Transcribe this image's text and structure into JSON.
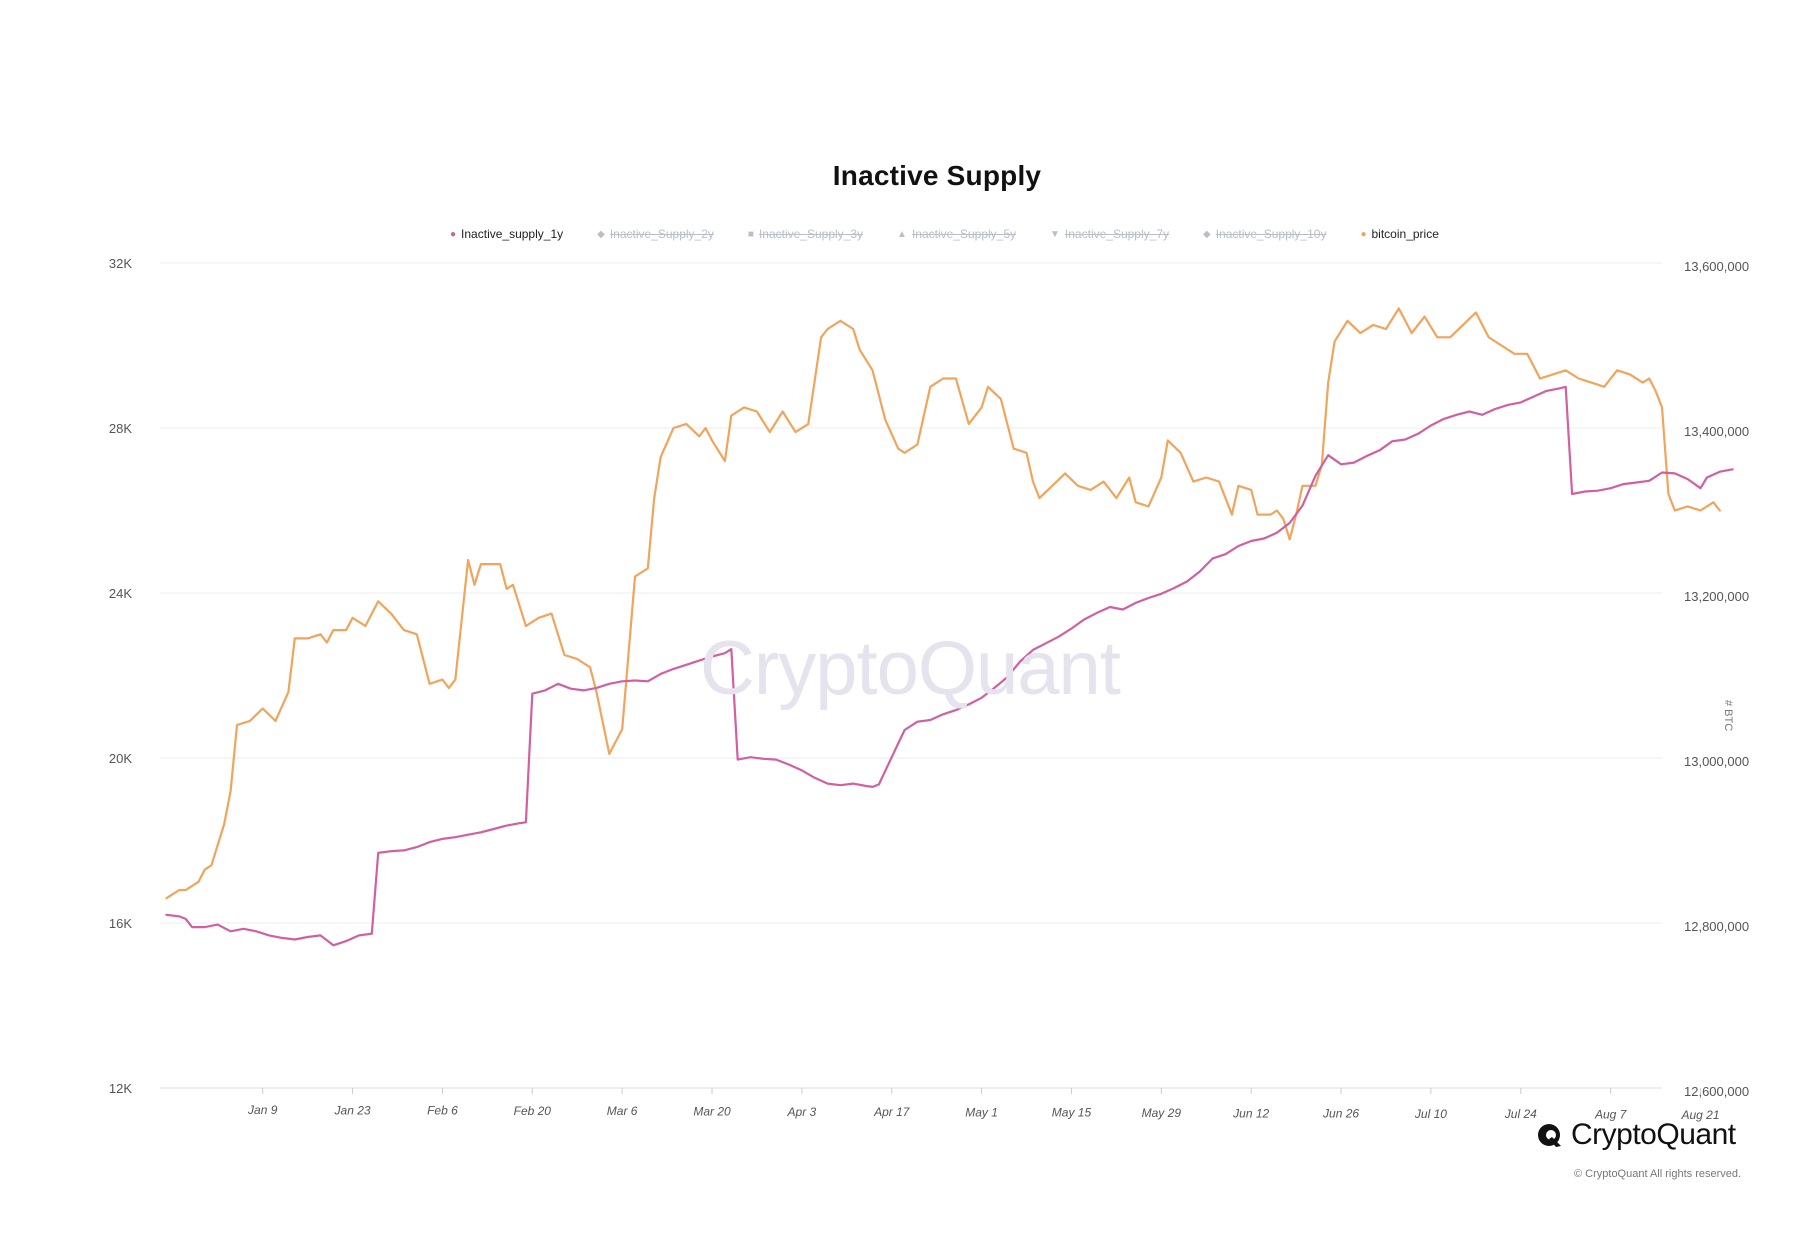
{
  "page": {
    "title": "Inactive Supply",
    "watermark": "CryptoQuant",
    "brand": "CryptoQuant",
    "copyright": "© CryptoQuant All rights reserved."
  },
  "legend": [
    {
      "label": "Inactive_supply_1y",
      "active": true,
      "color": "#d0609f",
      "marker": "●"
    },
    {
      "label": "Inactive_Supply_2y",
      "active": false,
      "color": "#b9bec8",
      "marker": "◆"
    },
    {
      "label": "Inactive_Supply_3y",
      "active": false,
      "color": "#b9bec8",
      "marker": "■"
    },
    {
      "label": "Inactive_Supply_5y",
      "active": false,
      "color": "#b9bec8",
      "marker": "▲"
    },
    {
      "label": "Inactive_Supply_7y",
      "active": false,
      "color": "#b9bec8",
      "marker": "▼"
    },
    {
      "label": "Inactive_Supply_10y",
      "active": false,
      "color": "#b9bec8",
      "marker": "◆"
    },
    {
      "label": "bitcoin_price",
      "active": true,
      "color": "#f0a45c",
      "marker": "●"
    }
  ],
  "chart_data": {
    "type": "line",
    "title": "Inactive Supply",
    "y_left_ticks": [
      "12K",
      "16K",
      "20K",
      "24K",
      "28K",
      "32K"
    ],
    "y_left_range": [
      12000,
      32000
    ],
    "y_right_ticks": [
      "12,600,000",
      "12,800,000",
      "13,000,000",
      "13,200,000",
      "13,400,000",
      "13,600,000"
    ],
    "y_right_range": [
      12600000,
      13600000
    ],
    "y_right_label": "# BTC",
    "x_ticks": [
      "Jan 9",
      "Jan 23",
      "Feb 6",
      "Feb 20",
      "Mar 6",
      "Mar 20",
      "Apr 3",
      "Apr 17",
      "May 1",
      "May 15",
      "May 29",
      "Jun 12",
      "Jun 26",
      "Jul 10",
      "Jul 24",
      "Aug 7",
      "Aug 21"
    ],
    "x_start_day": -8,
    "x_end_day": 226,
    "grid": true,
    "series": [
      {
        "name": "bitcoin_price",
        "axis": "left",
        "color": "#f0a45c",
        "points": [
          [
            -7,
            16600
          ],
          [
            -6,
            16700
          ],
          [
            -5,
            16800
          ],
          [
            -4,
            16800
          ],
          [
            -3,
            16900
          ],
          [
            -2,
            17000
          ],
          [
            -1,
            17300
          ],
          [
            0,
            17400
          ],
          [
            2,
            18400
          ],
          [
            3,
            19200
          ],
          [
            4,
            20800
          ],
          [
            6,
            20900
          ],
          [
            8,
            21200
          ],
          [
            10,
            20900
          ],
          [
            12,
            21600
          ],
          [
            13,
            22900
          ],
          [
            15,
            22900
          ],
          [
            17,
            23000
          ],
          [
            18,
            22800
          ],
          [
            19,
            23100
          ],
          [
            21,
            23100
          ],
          [
            22,
            23400
          ],
          [
            24,
            23200
          ],
          [
            26,
            23800
          ],
          [
            28,
            23500
          ],
          [
            30,
            23100
          ],
          [
            32,
            23000
          ],
          [
            34,
            21800
          ],
          [
            36,
            21900
          ],
          [
            37,
            21700
          ],
          [
            38,
            21900
          ],
          [
            40,
            24800
          ],
          [
            41,
            24200
          ],
          [
            42,
            24700
          ],
          [
            45,
            24700
          ],
          [
            46,
            24100
          ],
          [
            47,
            24200
          ],
          [
            49,
            23200
          ],
          [
            51,
            23400
          ],
          [
            53,
            23500
          ],
          [
            55,
            22500
          ],
          [
            57,
            22400
          ],
          [
            59,
            22200
          ],
          [
            60,
            21600
          ],
          [
            62,
            20100
          ],
          [
            64,
            20700
          ],
          [
            66,
            24400
          ],
          [
            68,
            24600
          ],
          [
            69,
            26300
          ],
          [
            70,
            27300
          ],
          [
            72,
            28000
          ],
          [
            74,
            28100
          ],
          [
            76,
            27800
          ],
          [
            77,
            28000
          ],
          [
            78,
            27700
          ],
          [
            80,
            27200
          ],
          [
            81,
            28300
          ],
          [
            83,
            28500
          ],
          [
            85,
            28400
          ],
          [
            87,
            27900
          ],
          [
            89,
            28400
          ],
          [
            91,
            27900
          ],
          [
            93,
            28100
          ],
          [
            95,
            30200
          ],
          [
            96,
            30400
          ],
          [
            98,
            30600
          ],
          [
            100,
            30400
          ],
          [
            101,
            29900
          ],
          [
            103,
            29400
          ],
          [
            105,
            28200
          ],
          [
            107,
            27500
          ],
          [
            108,
            27400
          ],
          [
            110,
            27600
          ],
          [
            112,
            29000
          ],
          [
            114,
            29200
          ],
          [
            116,
            29200
          ],
          [
            118,
            28100
          ],
          [
            120,
            28500
          ],
          [
            121,
            29000
          ],
          [
            123,
            28700
          ],
          [
            125,
            27500
          ],
          [
            127,
            27400
          ],
          [
            128,
            26700
          ],
          [
            129,
            26300
          ],
          [
            131,
            26600
          ],
          [
            133,
            26900
          ],
          [
            135,
            26600
          ],
          [
            137,
            26500
          ],
          [
            139,
            26700
          ],
          [
            141,
            26300
          ],
          [
            143,
            26800
          ],
          [
            144,
            26200
          ],
          [
            146,
            26100
          ],
          [
            148,
            26800
          ],
          [
            149,
            27700
          ],
          [
            151,
            27400
          ],
          [
            153,
            26700
          ],
          [
            155,
            26800
          ],
          [
            157,
            26700
          ],
          [
            159,
            25900
          ],
          [
            160,
            26600
          ],
          [
            162,
            26500
          ],
          [
            163,
            25900
          ],
          [
            165,
            25900
          ],
          [
            166,
            26000
          ],
          [
            167,
            25800
          ],
          [
            168,
            25300
          ],
          [
            169,
            25900
          ],
          [
            170,
            26600
          ],
          [
            172,
            26600
          ],
          [
            173,
            27100
          ],
          [
            174,
            29100
          ],
          [
            175,
            30100
          ],
          [
            177,
            30600
          ],
          [
            179,
            30300
          ],
          [
            181,
            30500
          ],
          [
            183,
            30400
          ],
          [
            185,
            30900
          ],
          [
            187,
            30300
          ],
          [
            189,
            30700
          ],
          [
            191,
            30200
          ],
          [
            193,
            30200
          ],
          [
            195,
            30500
          ],
          [
            197,
            30800
          ],
          [
            199,
            30200
          ],
          [
            201,
            30000
          ],
          [
            203,
            29800
          ],
          [
            205,
            29800
          ],
          [
            207,
            29200
          ],
          [
            209,
            29300
          ],
          [
            211,
            29400
          ],
          [
            213,
            29200
          ],
          [
            215,
            29100
          ],
          [
            217,
            29000
          ],
          [
            219,
            29400
          ],
          [
            221,
            29300
          ],
          [
            223,
            29100
          ],
          [
            224,
            29200
          ],
          [
            225,
            28900
          ],
          [
            226,
            28500
          ],
          [
            227,
            26400
          ],
          [
            228,
            26000
          ],
          [
            230,
            26100
          ],
          [
            232,
            26000
          ],
          [
            234,
            26200
          ],
          [
            235,
            26000
          ]
        ]
      },
      {
        "name": "Inactive_supply_1y",
        "axis": "right",
        "color": "#d0609f",
        "points": [
          [
            -7,
            12810000
          ],
          [
            -5,
            12808000
          ],
          [
            -4,
            12805000
          ],
          [
            -3,
            12795000
          ],
          [
            -1,
            12795000
          ],
          [
            1,
            12798000
          ],
          [
            3,
            12790000
          ],
          [
            5,
            12793000
          ],
          [
            7,
            12790000
          ],
          [
            9,
            12785000
          ],
          [
            11,
            12782000
          ],
          [
            13,
            12780000
          ],
          [
            15,
            12783000
          ],
          [
            17,
            12785000
          ],
          [
            19,
            12773000
          ],
          [
            21,
            12778000
          ],
          [
            23,
            12785000
          ],
          [
            25,
            12787000
          ],
          [
            26,
            12885000
          ],
          [
            28,
            12887000
          ],
          [
            30,
            12888000
          ],
          [
            32,
            12892000
          ],
          [
            34,
            12898000
          ],
          [
            36,
            12902000
          ],
          [
            38,
            12904000
          ],
          [
            40,
            12907000
          ],
          [
            42,
            12910000
          ],
          [
            44,
            12914000
          ],
          [
            46,
            12918000
          ],
          [
            48,
            12921000
          ],
          [
            49,
            12922000
          ],
          [
            50,
            13078000
          ],
          [
            52,
            13082000
          ],
          [
            54,
            13090000
          ],
          [
            56,
            13084000
          ],
          [
            58,
            13082000
          ],
          [
            60,
            13085000
          ],
          [
            62,
            13090000
          ],
          [
            64,
            13093000
          ],
          [
            66,
            13094000
          ],
          [
            68,
            13093000
          ],
          [
            70,
            13102000
          ],
          [
            72,
            13108000
          ],
          [
            74,
            13113000
          ],
          [
            76,
            13118000
          ],
          [
            78,
            13123000
          ],
          [
            80,
            13127000
          ],
          [
            81,
            13132000
          ],
          [
            82,
            12998000
          ],
          [
            84,
            13001000
          ],
          [
            86,
            12999000
          ],
          [
            88,
            12998000
          ],
          [
            90,
            12992000
          ],
          [
            92,
            12985000
          ],
          [
            94,
            12976000
          ],
          [
            96,
            12969000
          ],
          [
            98,
            12967000
          ],
          [
            100,
            12969000
          ],
          [
            102,
            12966000
          ],
          [
            103,
            12965000
          ],
          [
            104,
            12968000
          ],
          [
            106,
            13001000
          ],
          [
            108,
            13034000
          ],
          [
            110,
            13044000
          ],
          [
            112,
            13046000
          ],
          [
            114,
            13053000
          ],
          [
            116,
            13058000
          ],
          [
            118,
            13065000
          ],
          [
            120,
            13073000
          ],
          [
            122,
            13085000
          ],
          [
            124,
            13098000
          ],
          [
            126,
            13117000
          ],
          [
            128,
            13131000
          ],
          [
            130,
            13139000
          ],
          [
            132,
            13147000
          ],
          [
            134,
            13157000
          ],
          [
            136,
            13168000
          ],
          [
            138,
            13176000
          ],
          [
            140,
            13183000
          ],
          [
            142,
            13180000
          ],
          [
            144,
            13188000
          ],
          [
            146,
            13194000
          ],
          [
            148,
            13199000
          ],
          [
            150,
            13206000
          ],
          [
            152,
            13214000
          ],
          [
            154,
            13226000
          ],
          [
            156,
            13242000
          ],
          [
            158,
            13247000
          ],
          [
            160,
            13257000
          ],
          [
            162,
            13263000
          ],
          [
            164,
            13266000
          ],
          [
            166,
            13273000
          ],
          [
            168,
            13285000
          ],
          [
            170,
            13306000
          ],
          [
            172,
            13342000
          ],
          [
            174,
            13367000
          ],
          [
            176,
            13356000
          ],
          [
            178,
            13358000
          ],
          [
            180,
            13366000
          ],
          [
            182,
            13373000
          ],
          [
            184,
            13384000
          ],
          [
            186,
            13386000
          ],
          [
            188,
            13393000
          ],
          [
            190,
            13403000
          ],
          [
            192,
            13411000
          ],
          [
            194,
            13416000
          ],
          [
            196,
            13420000
          ],
          [
            198,
            13416000
          ],
          [
            200,
            13423000
          ],
          [
            202,
            13428000
          ],
          [
            204,
            13431000
          ],
          [
            206,
            13438000
          ],
          [
            208,
            13445000
          ],
          [
            210,
            13448000
          ],
          [
            211,
            13450000
          ],
          [
            212,
            13320000
          ],
          [
            214,
            13323000
          ],
          [
            216,
            13324000
          ],
          [
            218,
            13327000
          ],
          [
            220,
            13332000
          ],
          [
            222,
            13334000
          ],
          [
            224,
            13336000
          ],
          [
            226,
            13346000
          ],
          [
            228,
            13345000
          ],
          [
            230,
            13338000
          ],
          [
            232,
            13327000
          ],
          [
            233,
            13340000
          ],
          [
            235,
            13347000
          ],
          [
            237,
            13350000
          ]
        ]
      }
    ]
  }
}
